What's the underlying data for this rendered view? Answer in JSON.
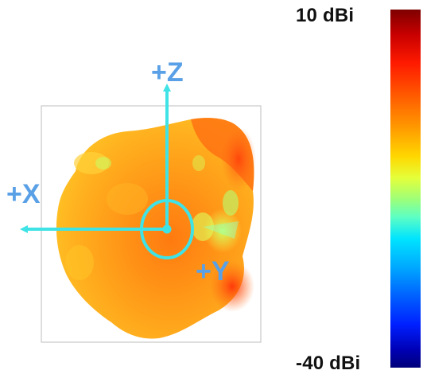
{
  "colorbar": {
    "max_label": "10 dBi",
    "min_label": "-40 dBi"
  },
  "axes": {
    "z_label": "+Z",
    "x_label": "+X",
    "y_label": "+Y"
  },
  "colors": {
    "axis_arrow": "#3fe3e6",
    "axis_label": "#5aa0e6",
    "pattern_orange": "#ff8a14",
    "pattern_red": "#ff4a10",
    "pattern_yellow": "#ffc21a"
  }
}
